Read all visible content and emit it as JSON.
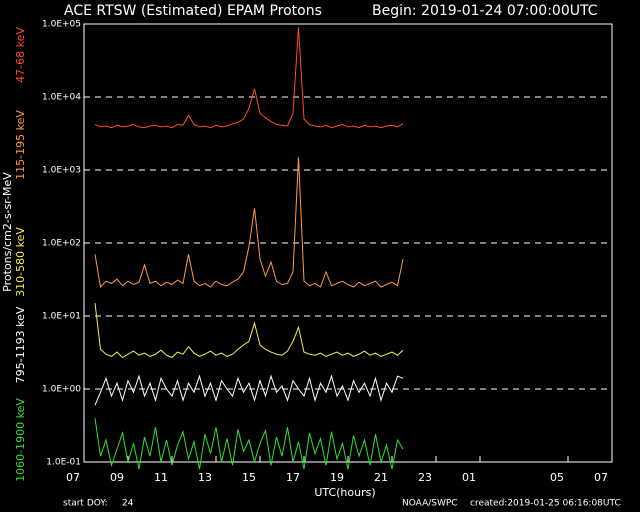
{
  "chart_data": {
    "type": "line",
    "title": "ACE RTSW (Estimated) EPAM Protons",
    "subtitle": "Begin: 2019-01-24 07:00:00UTC",
    "x_label": "UTC(hours)",
    "y_label": "Protons/cm2-s-sr-MeV",
    "y_log": true,
    "grid": true,
    "footer": {
      "doy_label": "start DOY:",
      "doy": "24",
      "source": "NOAA/SWPC",
      "created": "created:2019-01-25 06:16:08UTC"
    },
    "xlim": [
      0,
      24
    ],
    "xticks": [
      {
        "value": 0,
        "label": "07"
      },
      {
        "value": 2,
        "label": "09"
      },
      {
        "value": 4,
        "label": "11"
      },
      {
        "value": 6,
        "label": "13"
      },
      {
        "value": 8,
        "label": "15"
      },
      {
        "value": 10,
        "label": "17"
      },
      {
        "value": 12,
        "label": "19"
      },
      {
        "value": 14,
        "label": "21"
      },
      {
        "value": 16,
        "label": "23"
      },
      {
        "value": 18,
        "label": "01"
      },
      {
        "value": 22,
        "label": "05"
      },
      {
        "value": 24,
        "label": "07"
      }
    ],
    "ylim": [
      0.1,
      100000
    ],
    "yticks": [
      {
        "value": 0.1,
        "label": "1.0E-01"
      },
      {
        "value": 1,
        "label": "1.0E+00"
      },
      {
        "value": 10,
        "label": "1.0E+01"
      },
      {
        "value": 100,
        "label": "1.0E+02"
      },
      {
        "value": 1000,
        "label": "1.0E+03"
      },
      {
        "value": 10000,
        "label": "1.0E+04"
      },
      {
        "value": 100000,
        "label": "1.0E+05"
      }
    ],
    "x": [
      0.5,
      0.75,
      1,
      1.25,
      1.5,
      1.75,
      2,
      2.25,
      2.5,
      2.75,
      3,
      3.25,
      3.5,
      3.75,
      4,
      4.25,
      4.5,
      4.75,
      5,
      5.25,
      5.5,
      5.75,
      6,
      6.25,
      6.5,
      6.75,
      7,
      7.25,
      7.5,
      7.75,
      8,
      8.25,
      8.5,
      8.75,
      9,
      9.25,
      9.5,
      9.75,
      10,
      10.25,
      10.5,
      10.75,
      11,
      11.25,
      11.5,
      11.75,
      12,
      12.25,
      12.5,
      12.75,
      13,
      13.25,
      13.5,
      13.75,
      14,
      14.25,
      14.5
    ],
    "series": [
      {
        "name": "47-68 keV",
        "color": "#ff4a2a",
        "values": [
          4200,
          3900,
          4000,
          3800,
          4100,
          3900,
          4000,
          4200,
          3900,
          3800,
          4000,
          4100,
          3900,
          4000,
          3800,
          4200,
          4100,
          5600,
          4200,
          3900,
          4000,
          3800,
          4100,
          3900,
          4000,
          4300,
          4500,
          5000,
          7000,
          13000,
          6000,
          5200,
          4600,
          4200,
          4100,
          4000,
          6000,
          90000,
          5000,
          4200,
          4000,
          3900,
          4100,
          3800,
          4000,
          4200,
          3900,
          4000,
          3800,
          4100,
          3900,
          4000,
          3800,
          4000,
          4100,
          3900,
          4300
        ]
      },
      {
        "name": "115-195 keV",
        "color": "#ff9a40",
        "values": [
          70,
          25,
          30,
          28,
          32,
          26,
          30,
          27,
          29,
          50,
          28,
          30,
          26,
          29,
          27,
          31,
          28,
          70,
          30,
          26,
          28,
          25,
          30,
          27,
          26,
          29,
          32,
          40,
          90,
          300,
          60,
          35,
          55,
          30,
          27,
          28,
          40,
          1500,
          30,
          26,
          28,
          25,
          40,
          26,
          28,
          30,
          27,
          25,
          29,
          26,
          28,
          30,
          25,
          27,
          29,
          26,
          60
        ]
      },
      {
        "name": "310-580 keV",
        "color": "#f4f040",
        "values": [
          15,
          3.5,
          3.0,
          2.8,
          3.2,
          2.7,
          3.0,
          3.3,
          2.9,
          3.1,
          2.8,
          3.0,
          3.4,
          2.9,
          2.7,
          3.2,
          3.0,
          3.8,
          3.1,
          2.8,
          3.0,
          3.3,
          2.9,
          3.1,
          2.8,
          3.0,
          3.5,
          4.0,
          4.5,
          8.0,
          4.0,
          3.5,
          3.2,
          3.0,
          2.9,
          3.3,
          4.5,
          7.0,
          3.2,
          3.0,
          2.9,
          3.1,
          2.8,
          3.0,
          3.2,
          2.9,
          3.1,
          2.8,
          3.0,
          3.3,
          2.9,
          3.1,
          2.8,
          3.0,
          3.2,
          2.9,
          3.4
        ]
      },
      {
        "name": "795-1193 keV",
        "color": "#ffffff",
        "values": [
          0.6,
          0.9,
          1.4,
          0.8,
          1.2,
          0.7,
          1.3,
          0.9,
          1.5,
          0.8,
          1.2,
          0.7,
          1.4,
          1.0,
          0.8,
          1.3,
          0.7,
          1.2,
          0.9,
          1.5,
          0.8,
          1.2,
          0.7,
          1.3,
          1.0,
          0.8,
          1.4,
          0.9,
          1.2,
          0.7,
          1.3,
          0.8,
          1.5,
          0.9,
          1.1,
          0.7,
          1.3,
          1.0,
          0.8,
          1.4,
          0.7,
          1.2,
          0.9,
          1.5,
          0.8,
          1.1,
          0.7,
          1.3,
          0.9,
          1.2,
          0.8,
          1.4,
          0.7,
          1.2,
          0.9,
          1.5,
          1.4
        ]
      },
      {
        "name": "1060-1900 keV",
        "color": "#30e030",
        "values": [
          0.4,
          0.12,
          0.2,
          0.09,
          0.15,
          0.25,
          0.1,
          0.18,
          0.08,
          0.22,
          0.12,
          0.3,
          0.1,
          0.2,
          0.09,
          0.17,
          0.26,
          0.11,
          0.19,
          0.08,
          0.24,
          0.13,
          0.3,
          0.1,
          0.21,
          0.09,
          0.28,
          0.14,
          0.2,
          0.1,
          0.18,
          0.27,
          0.09,
          0.22,
          0.12,
          0.3,
          0.1,
          0.19,
          0.08,
          0.25,
          0.13,
          0.21,
          0.09,
          0.26,
          0.11,
          0.18,
          0.08,
          0.23,
          0.12,
          0.2,
          0.09,
          0.24,
          0.1,
          0.17,
          0.08,
          0.2,
          0.15
        ]
      }
    ]
  }
}
